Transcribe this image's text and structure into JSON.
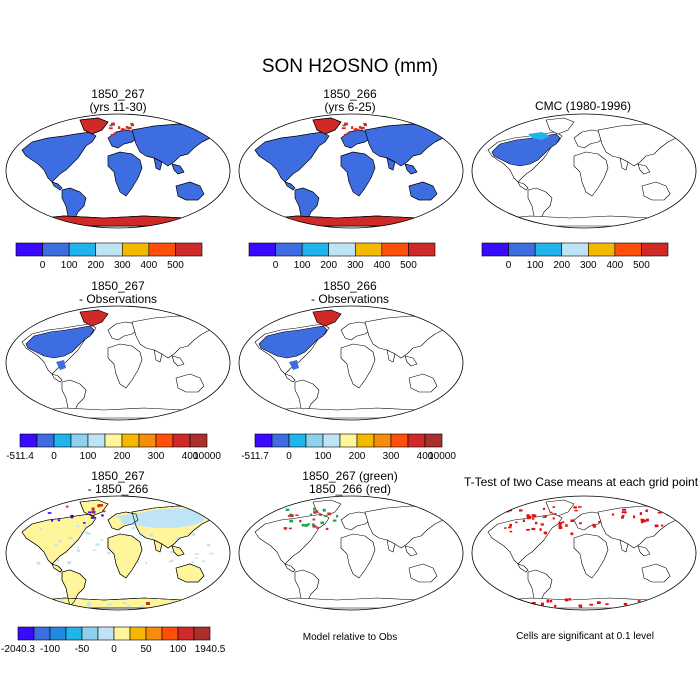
{
  "figure": {
    "title": "SON H2OSNO (mm)",
    "note_middle": "Model relative to Obs",
    "note_right": "Cells are significant at 0.1 level"
  },
  "panels": [
    {
      "key": "p11",
      "title1": "1850_267",
      "title2": "(yrs 11-30)",
      "fill": "model"
    },
    {
      "key": "p12",
      "title1": "1850_266",
      "title2": "(yrs 6-25)",
      "fill": "model"
    },
    {
      "key": "p13",
      "title1": "CMC (1980-1996)",
      "title2": "",
      "fill": "obs"
    },
    {
      "key": "p21",
      "title1": "1850_267",
      "title2": "- Observations",
      "fill": "diffobs"
    },
    {
      "key": "p22",
      "title1": "1850_266",
      "title2": "- Observations",
      "fill": "diffobs"
    },
    {
      "key": "p31",
      "title1": "1850_267",
      "title2": "- 1850_266",
      "fill": "diffcase"
    },
    {
      "key": "p32",
      "title1": "1850_267 (green)",
      "title2": "1850_266 (red)",
      "fill": "contour"
    },
    {
      "key": "p33",
      "title1": "T-Test of two Case means at each grid point",
      "title2": "",
      "fill": "ttest"
    }
  ],
  "colorbars": {
    "abs": {
      "colors": [
        "#3a0aff",
        "#3d6de0",
        "#1fb4ec",
        "#bfe4f5",
        "#f5b800",
        "#ff4f0a",
        "#cf2a28"
      ],
      "labels": [
        "0",
        "100",
        "200",
        "300",
        "400",
        "500"
      ]
    },
    "diff_obs_267": {
      "colors": [
        "#3a0aff",
        "#3d6de0",
        "#1fb4ec",
        "#8fd0ec",
        "#bfe4f5",
        "#fff59a",
        "#f5b800",
        "#f68d0c",
        "#ff4f0a",
        "#cf2a28",
        "#a9302c"
      ],
      "labels": [
        "-511.4",
        "0",
        "100",
        "200",
        "300",
        "400",
        "10000"
      ]
    },
    "diff_obs_266": {
      "colors": [
        "#3a0aff",
        "#3d6de0",
        "#1fb4ec",
        "#8fd0ec",
        "#bfe4f5",
        "#fff59a",
        "#f5b800",
        "#f68d0c",
        "#ff4f0a",
        "#cf2a28",
        "#a9302c"
      ],
      "labels": [
        "-511.7",
        "0",
        "100",
        "200",
        "300",
        "400",
        "10000"
      ]
    },
    "diff_case": {
      "colors": [
        "#3a0aff",
        "#3d6de0",
        "#1f8ae0",
        "#1fb4ec",
        "#8fd0ec",
        "#bfe4f5",
        "#fff59a",
        "#f5b800",
        "#f68d0c",
        "#ff4f0a",
        "#cf2a28",
        "#a9302c"
      ],
      "labels": [
        "-2040.3",
        "-100",
        "-50",
        "0",
        "50",
        "100",
        "1940.5"
      ]
    }
  },
  "chart_data": {
    "type": "heatmap",
    "title": "SON H2OSNO (mm)",
    "variable": "H2OSNO",
    "season": "SON",
    "units": "mm",
    "projection": "Robinson world map",
    "panels": [
      "1850_267 (yrs 11-30)",
      "1850_266 (yrs 6-25)",
      "CMC (1980-1996)",
      "1850_267 - Observations",
      "1850_266 - Observations",
      "1850_267 - 1850_266",
      "1850_267 (green) 1850_266 (red)",
      "T-Test of two Case means at each grid point"
    ],
    "abs_levels": [
      0,
      100,
      200,
      300,
      400,
      500
    ],
    "diff_obs_levels_267": [
      -511.4,
      0,
      100,
      200,
      300,
      400,
      10000
    ],
    "diff_obs_levels_266": [
      -511.7,
      0,
      100,
      200,
      300,
      400,
      10000
    ],
    "diff_case_levels": [
      -2040.3,
      -100,
      -50,
      0,
      50,
      100,
      1940.5
    ]
  }
}
